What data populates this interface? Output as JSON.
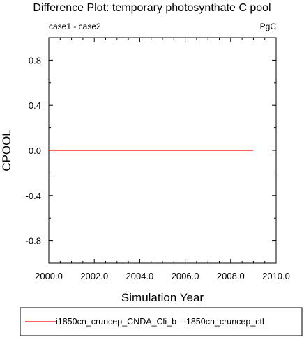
{
  "chart_data": {
    "type": "line",
    "title": "Difference Plot: temporary photosynthate C pool",
    "subtitle_left": "case1 - case2",
    "subtitle_right": "PgC",
    "xlabel": "Simulation Year",
    "ylabel": "CPOOL",
    "xlim": [
      2000.0,
      2010.0
    ],
    "ylim": [
      -1.0,
      1.0
    ],
    "x_ticks": [
      "2000.0",
      "2002.0",
      "2004.0",
      "2006.0",
      "2008.0",
      "2010.0"
    ],
    "y_ticks": [
      "0.8",
      "0.4",
      "0.0",
      "-0.4",
      "-0.8"
    ],
    "series": [
      {
        "name": "i1850cn_cruncep_CNDA_Cli_b - i1850cn_cruncep_ctl",
        "color": "#ff0000",
        "x": [
          2000,
          2001,
          2002,
          2003,
          2004,
          2005,
          2006,
          2007,
          2008,
          2009
        ],
        "y": [
          0,
          0,
          0,
          0,
          0,
          0,
          0,
          0,
          0,
          0
        ]
      }
    ],
    "grid": false,
    "legend_position": "bottom"
  }
}
